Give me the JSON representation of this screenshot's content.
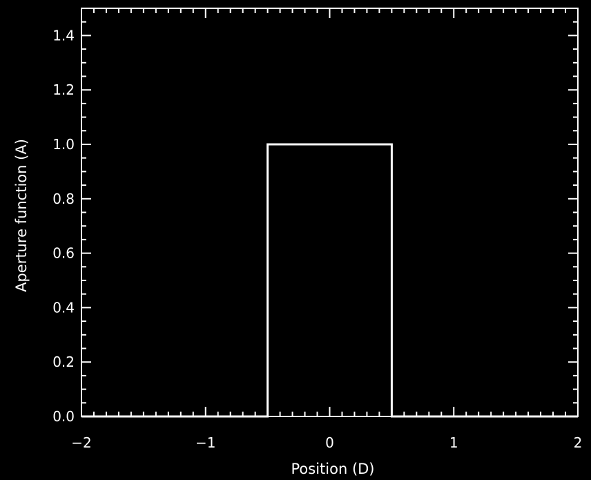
{
  "chart_data": {
    "type": "line",
    "title": "",
    "xlabel": "Position (D)",
    "ylabel": "Aperture function (A)",
    "xlim": [
      -2,
      2
    ],
    "ylim": [
      0,
      1.5
    ],
    "x_ticks": [
      -2,
      -1,
      0,
      1,
      2
    ],
    "x_tick_labels": [
      "−2",
      "−1",
      "0",
      "1",
      "2"
    ],
    "y_ticks": [
      0.0,
      0.2,
      0.4,
      0.6,
      0.8,
      1.0,
      1.2,
      1.4
    ],
    "y_tick_labels": [
      "0.0",
      "0.2",
      "0.4",
      "0.6",
      "0.8",
      "1.0",
      "1.2",
      "1.4"
    ],
    "x_minor_step": 0.1,
    "y_minor_step": 0.05,
    "grid": false,
    "series": [
      {
        "x": [
          -2,
          -0.5,
          -0.5,
          0.5,
          0.5,
          2
        ],
        "y": [
          0,
          0,
          1,
          1,
          0,
          0
        ]
      }
    ],
    "colors": {
      "background": "#000000",
      "foreground": "#ffffff"
    }
  }
}
